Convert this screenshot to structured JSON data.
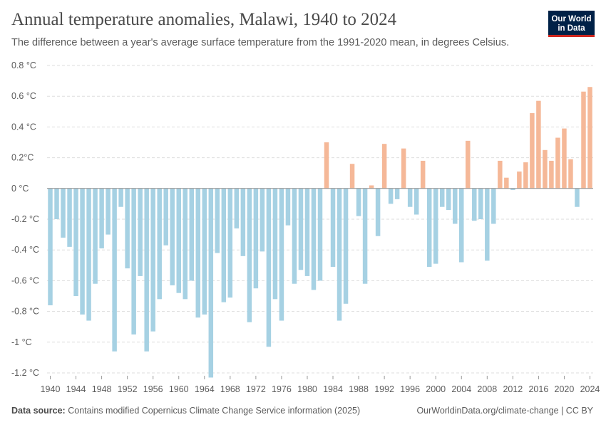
{
  "header": {
    "title": "Annual temperature anomalies, Malawi, 1940 to 2024",
    "subtitle": "The difference between a year's average surface temperature from the 1991-2020 mean, in degrees Celsius.",
    "logo_line1": "Our World",
    "logo_line2": "in Data"
  },
  "footer": {
    "source_label": "Data source:",
    "source_text": "Contains modified Copernicus Climate Change Service information (2025)",
    "credit": "OurWorldinData.org/climate-change | CC BY"
  },
  "colors": {
    "negative": "#a6d1e3",
    "positive": "#f5b898",
    "grid": "#dddddd",
    "baseline": "#8a8a8a"
  },
  "chart_data": {
    "type": "bar",
    "title": "Annual temperature anomalies, Malawi, 1940 to 2024",
    "ylim": [
      -1.2,
      0.8
    ],
    "yticks": [
      0.8,
      0.6,
      0.4,
      0.2,
      0,
      -0.2,
      -0.4,
      -0.6,
      -0.8,
      -1,
      -1.2
    ],
    "ytick_labels": [
      "0.8 °C",
      "0.6 °C",
      "0.4 °C",
      "0.2°C",
      "0 °C",
      "-0.2 °C",
      "-0.4 °C",
      "-0.6 °C",
      "-0.8 °C",
      "-1 °C",
      "-1.2 °C"
    ],
    "xtick_labels": [
      "1940",
      "1944",
      "1948",
      "1952",
      "1956",
      "1960",
      "1964",
      "1968",
      "1972",
      "1976",
      "1980",
      "1984",
      "1988",
      "1992",
      "1996",
      "2000",
      "2004",
      "2008",
      "2012",
      "2016",
      "2020",
      "2024"
    ],
    "grid": true,
    "years": [
      1940,
      1941,
      1942,
      1943,
      1944,
      1945,
      1946,
      1947,
      1948,
      1949,
      1950,
      1951,
      1952,
      1953,
      1954,
      1955,
      1956,
      1957,
      1958,
      1959,
      1960,
      1961,
      1962,
      1963,
      1964,
      1965,
      1966,
      1967,
      1968,
      1969,
      1970,
      1971,
      1972,
      1973,
      1974,
      1975,
      1976,
      1977,
      1978,
      1979,
      1980,
      1981,
      1982,
      1983,
      1984,
      1985,
      1986,
      1987,
      1988,
      1989,
      1990,
      1991,
      1992,
      1993,
      1994,
      1995,
      1996,
      1997,
      1998,
      1999,
      2000,
      2001,
      2002,
      2003,
      2004,
      2005,
      2006,
      2007,
      2008,
      2009,
      2010,
      2011,
      2012,
      2013,
      2014,
      2015,
      2016,
      2017,
      2018,
      2019,
      2020,
      2021,
      2022,
      2023,
      2024
    ],
    "values": [
      -0.76,
      -0.2,
      -0.32,
      -0.38,
      -0.7,
      -0.82,
      -0.86,
      -0.62,
      -0.39,
      -0.3,
      -1.06,
      -0.12,
      -0.52,
      -0.95,
      -0.57,
      -1.06,
      -0.93,
      -0.72,
      -0.37,
      -0.63,
      -0.68,
      -0.72,
      -0.6,
      -0.84,
      -0.82,
      -1.23,
      -0.42,
      -0.74,
      -0.71,
      -0.26,
      -0.44,
      -0.87,
      -0.65,
      -0.41,
      -1.03,
      -0.72,
      -0.86,
      -0.24,
      -0.62,
      -0.53,
      -0.57,
      -0.66,
      -0.6,
      0.3,
      -0.51,
      -0.86,
      -0.75,
      0.16,
      -0.18,
      -0.62,
      0.02,
      -0.31,
      0.29,
      -0.1,
      -0.07,
      0.26,
      -0.12,
      -0.17,
      0.18,
      -0.51,
      -0.49,
      -0.12,
      -0.14,
      -0.23,
      -0.48,
      0.31,
      -0.21,
      -0.2,
      -0.47,
      -0.23,
      0.18,
      0.07,
      -0.01,
      0.11,
      0.17,
      0.49,
      0.57,
      0.25,
      0.18,
      0.33,
      0.39,
      0.19,
      -0.12,
      0.63,
      0.66
    ]
  }
}
